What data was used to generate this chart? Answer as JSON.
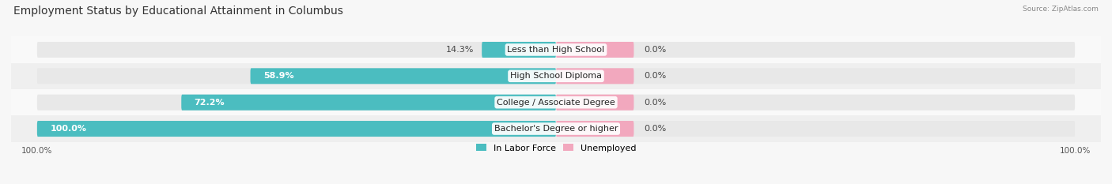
{
  "title": "Employment Status by Educational Attainment in Columbus",
  "source": "Source: ZipAtlas.com",
  "categories": [
    "Less than High School",
    "High School Diploma",
    "College / Associate Degree",
    "Bachelor's Degree or higher"
  ],
  "labor_force_pct": [
    14.3,
    58.9,
    72.2,
    100.0
  ],
  "unemployed_pct": [
    0.0,
    0.0,
    0.0,
    0.0
  ],
  "unemployed_display": [
    15.0,
    15.0,
    15.0,
    15.0
  ],
  "labor_force_color": "#4BBDC0",
  "unemployed_color": "#F2A8BE",
  "bar_bg_color": "#E8E8E8",
  "title_fontsize": 10,
  "label_fontsize": 8,
  "pct_fontsize": 8,
  "axis_label_fontsize": 7.5,
  "legend_fontsize": 8,
  "fig_bg_color": "#F7F7F7",
  "row_bg_even": "#EFEFEF",
  "row_bg_odd": "#F9F9F9"
}
